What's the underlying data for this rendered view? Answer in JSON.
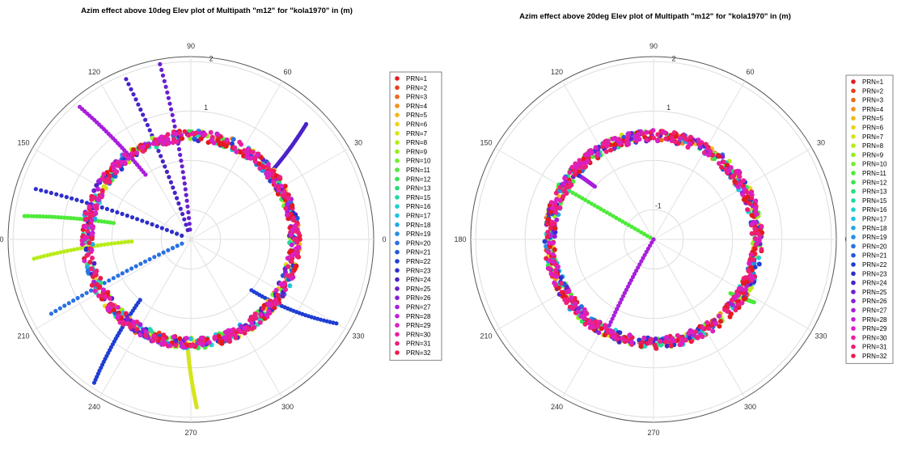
{
  "chart_data": [
    {
      "type": "scatter",
      "projection": "polar",
      "title": "Azim effect above 10deg Elev plot of Multipath \"m12\" for \"kola1970\" in (m)",
      "angle_ticks": [
        "0",
        "30",
        "60",
        "90",
        "120",
        "150",
        "180",
        "210",
        "240",
        "270",
        "300",
        "330"
      ],
      "radial_ticks": [
        "1",
        "2"
      ],
      "rlim": [
        -1.6,
        2.1
      ],
      "grid": true,
      "legend_position": "right",
      "legend": [
        "PRN=1",
        "PRN=2",
        "PRN=3",
        "PRN=4",
        "PRN=5",
        "PRN=6",
        "PRN=7",
        "PRN=8",
        "PRN=9",
        "PRN=10",
        "PRN=11",
        "PRN=12",
        "PRN=13",
        "PRN=15",
        "PRN=16",
        "PRN=17",
        "PRN=18",
        "PRN=19",
        "PRN=20",
        "PRN=21",
        "PRN=22",
        "PRN=23",
        "PRN=24",
        "PRN=25",
        "PRN=26",
        "PRN=27",
        "PRN=28",
        "PRN=29",
        "PRN=30",
        "PRN=31",
        "PRN=32"
      ],
      "ring_value_m": 0.5,
      "ring_fill_azimuth_deg": [
        0,
        360
      ],
      "rays": [
        {
          "series": "PRN=25",
          "azimuth_deg": [
            95,
            100
          ],
          "value_m": [
            -1.4,
            2.0
          ]
        },
        {
          "series": "PRN=24",
          "azimuth_deg": [
            108,
            112
          ],
          "value_m": [
            -1.4,
            1.9
          ]
        },
        {
          "series": "PRN=27",
          "azimuth_deg": [
            125,
            130
          ],
          "value_m": [
            0.0,
            1.9
          ]
        },
        {
          "series": "PRN=23",
          "azimuth_deg": [
            158,
            162
          ],
          "value_m": [
            -1.4,
            1.7
          ]
        },
        {
          "series": "PRN=11",
          "azimuth_deg": [
            168,
            172
          ],
          "value_m": [
            0.0,
            1.8
          ]
        },
        {
          "series": "PRN=8",
          "azimuth_deg": [
            182,
            187
          ],
          "value_m": [
            -0.4,
            1.6
          ]
        },
        {
          "series": "PRN=20",
          "azimuth_deg": [
            205,
            208
          ],
          "value_m": [
            -1.4,
            1.6
          ]
        },
        {
          "series": "PRN=22",
          "azimuth_deg": [
            230,
            236
          ],
          "value_m": [
            0.0,
            1.9
          ]
        },
        {
          "series": "PRN=7",
          "azimuth_deg": [
            268,
            272
          ],
          "value_m": [
            0.5,
            1.8
          ]
        },
        {
          "series": "PRN=22",
          "azimuth_deg": [
            320,
            330
          ],
          "value_m": [
            0.0,
            1.8
          ]
        },
        {
          "series": "PRN=24",
          "azimuth_deg": [
            40,
            45
          ],
          "value_m": [
            0.5,
            1.7
          ]
        }
      ]
    },
    {
      "type": "scatter",
      "projection": "polar",
      "title": "Azim effect above 20deg Elev plot of Multipath \"m12\" for \"kola1970\" in (m)",
      "angle_ticks": [
        "0",
        "30",
        "60",
        "90",
        "120",
        "150",
        "180",
        "210",
        "240",
        "270",
        "300",
        "330"
      ],
      "radial_ticks": [
        "-1",
        "1",
        "2"
      ],
      "rlim": [
        -1.6,
        2.1
      ],
      "grid": true,
      "legend_position": "right",
      "legend": [
        "PRN=1",
        "PRN=2",
        "PRN=3",
        "PRN=4",
        "PRN=5",
        "PRN=6",
        "PRN=7",
        "PRN=8",
        "PRN=9",
        "PRN=10",
        "PRN=11",
        "PRN=12",
        "PRN=13",
        "PRN=15",
        "PRN=16",
        "PRN=17",
        "PRN=18",
        "PRN=19",
        "PRN=20",
        "PRN=21",
        "PRN=22",
        "PRN=23",
        "PRN=24",
        "PRN=25",
        "PRN=26",
        "PRN=27",
        "PRN=28",
        "PRN=29",
        "PRN=30",
        "PRN=31",
        "PRN=32"
      ],
      "ring_value_m": 0.5,
      "ring_fill_azimuth_deg": [
        0,
        360
      ],
      "rays": [
        {
          "series": "PRN=11",
          "azimuth_deg": [
            150,
            150
          ],
          "value_m": [
            -1.6,
            0.5
          ]
        },
        {
          "series": "PRN=27",
          "azimuth_deg": [
            240,
            243
          ],
          "value_m": [
            -1.6,
            0.5
          ]
        },
        {
          "series": "PRN=27",
          "azimuth_deg": [
            138,
            140
          ],
          "value_m": [
            0.0,
            0.6
          ]
        },
        {
          "series": "PRN=11",
          "azimuth_deg": [
            325,
            328
          ],
          "value_m": [
            0.3,
            0.8
          ]
        }
      ]
    }
  ],
  "colors": [
    "#e41a1c",
    "#e8401c",
    "#ef6a1d",
    "#f2921c",
    "#f3b81b",
    "#ecd51b",
    "#d6e41a",
    "#b8ec1a",
    "#96ee22",
    "#74ee2e",
    "#4eea3a",
    "#36e552",
    "#28de7a",
    "#22d8a6",
    "#22d1cc",
    "#22c2e2",
    "#22a8e6",
    "#2a8ee6",
    "#2a70e2",
    "#2456db",
    "#1f3ed3",
    "#2e2ecc",
    "#4a22c8",
    "#6a1fd0",
    "#8a1fd8",
    "#a81fdc",
    "#c21fd8",
    "#da20c4",
    "#e820a0",
    "#ed2078",
    "#ec1c4e"
  ]
}
